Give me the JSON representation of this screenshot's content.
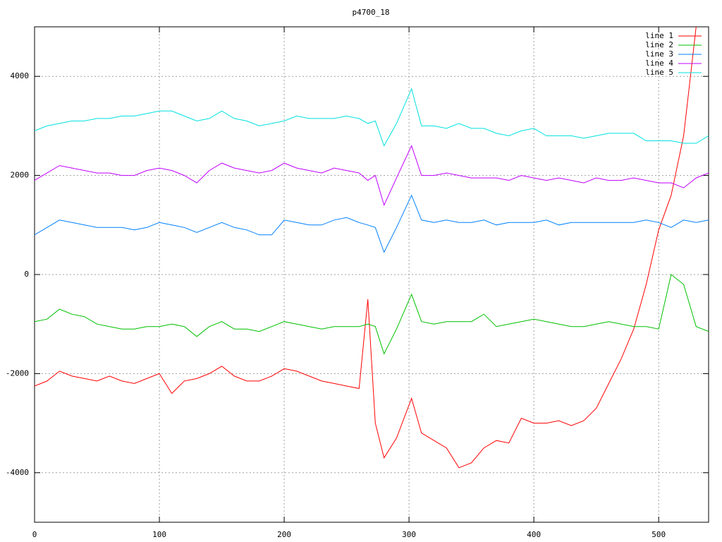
{
  "chart_data": {
    "type": "line",
    "title": "p4700_18",
    "x": [
      0,
      10,
      20,
      30,
      40,
      50,
      60,
      70,
      80,
      90,
      100,
      110,
      120,
      130,
      140,
      150,
      160,
      170,
      180,
      190,
      200,
      210,
      220,
      230,
      240,
      250,
      260,
      267,
      273,
      280,
      290,
      302,
      310,
      320,
      330,
      340,
      350,
      360,
      370,
      380,
      390,
      400,
      410,
      420,
      430,
      440,
      450,
      460,
      470,
      480,
      490,
      500,
      510,
      520,
      530,
      540
    ],
    "series": [
      {
        "name": "line 1",
        "color": "#ff0000",
        "values": [
          -2250,
          -2150,
          -1950,
          -2050,
          -2100,
          -2150,
          -2050,
          -2150,
          -2200,
          -2100,
          -2000,
          -2400,
          -2150,
          -2100,
          -2000,
          -1850,
          -2050,
          -2150,
          -2150,
          -2050,
          -1900,
          -1950,
          -2050,
          -2150,
          -2200,
          -2250,
          -2300,
          -500,
          -3000,
          -3700,
          -3300,
          -2500,
          -3200,
          -3350,
          -3500,
          -3900,
          -3800,
          -3500,
          -3350,
          -3400,
          -2900,
          -3000,
          -3000,
          -2950,
          -3050,
          -2950,
          -2700,
          -2200,
          -1700,
          -1100,
          -200,
          900,
          1600,
          2800,
          5000,
          null
        ]
      },
      {
        "name": "line 2",
        "color": "#00c000",
        "values": [
          -950,
          -900,
          -700,
          -800,
          -850,
          -1000,
          -1050,
          -1100,
          -1100,
          -1050,
          -1050,
          -1000,
          -1050,
          -1250,
          -1050,
          -950,
          -1100,
          -1100,
          -1150,
          -1050,
          -950,
          -1000,
          -1050,
          -1100,
          -1050,
          -1050,
          -1050,
          -1000,
          -1050,
          -1600,
          -1100,
          -400,
          -950,
          -1000,
          -950,
          -950,
          -950,
          -800,
          -1050,
          -1000,
          -950,
          -900,
          -950,
          -1000,
          -1050,
          -1050,
          -1000,
          -950,
          -1000,
          -1050,
          -1050,
          -1100,
          0,
          -200,
          -1050,
          -1150
        ]
      },
      {
        "name": "line 3",
        "color": "#0080ff",
        "values": [
          800,
          950,
          1100,
          1050,
          1000,
          950,
          950,
          950,
          900,
          950,
          1050,
          1000,
          950,
          850,
          950,
          1050,
          950,
          900,
          800,
          800,
          1100,
          1050,
          1000,
          1000,
          1100,
          1150,
          1050,
          1000,
          950,
          450,
          950,
          1600,
          1100,
          1050,
          1100,
          1050,
          1050,
          1100,
          1000,
          1050,
          1050,
          1050,
          1100,
          1000,
          1050,
          1050,
          1050,
          1050,
          1050,
          1050,
          1100,
          1050,
          950,
          1100,
          1050,
          1100
        ]
      },
      {
        "name": "line 4",
        "color": "#c000ff",
        "values": [
          1900,
          2050,
          2200,
          2150,
          2100,
          2050,
          2050,
          2000,
          2000,
          2100,
          2150,
          2100,
          2000,
          1850,
          2100,
          2250,
          2150,
          2100,
          2050,
          2100,
          2250,
          2150,
          2100,
          2050,
          2150,
          2100,
          2050,
          1900,
          2000,
          1400,
          1950,
          2600,
          2000,
          2000,
          2050,
          2000,
          1950,
          1950,
          1950,
          1900,
          2000,
          1950,
          1900,
          1950,
          1900,
          1850,
          1950,
          1900,
          1900,
          1950,
          1900,
          1850,
          1850,
          1750,
          1950,
          2050
        ]
      },
      {
        "name": "line 5",
        "color": "#00e0e0",
        "values": [
          2900,
          3000,
          3050,
          3100,
          3100,
          3150,
          3150,
          3200,
          3200,
          3250,
          3300,
          3300,
          3200,
          3100,
          3150,
          3300,
          3150,
          3100,
          3000,
          3050,
          3100,
          3200,
          3150,
          3150,
          3150,
          3200,
          3150,
          3050,
          3100,
          2600,
          3050,
          3750,
          3000,
          3000,
          2950,
          3050,
          2950,
          2950,
          2850,
          2800,
          2900,
          2950,
          2800,
          2800,
          2800,
          2750,
          2800,
          2850,
          2850,
          2850,
          2700,
          2700,
          2700,
          2650,
          2650,
          2800
        ]
      }
    ],
    "xlim": [
      0,
      540
    ],
    "ylim": [
      -5000,
      5000
    ],
    "xticks": [
      0,
      100,
      200,
      300,
      400,
      500
    ],
    "yticks": [
      -4000,
      -2000,
      0,
      2000,
      4000
    ],
    "grid": true,
    "legend": "top-right"
  }
}
